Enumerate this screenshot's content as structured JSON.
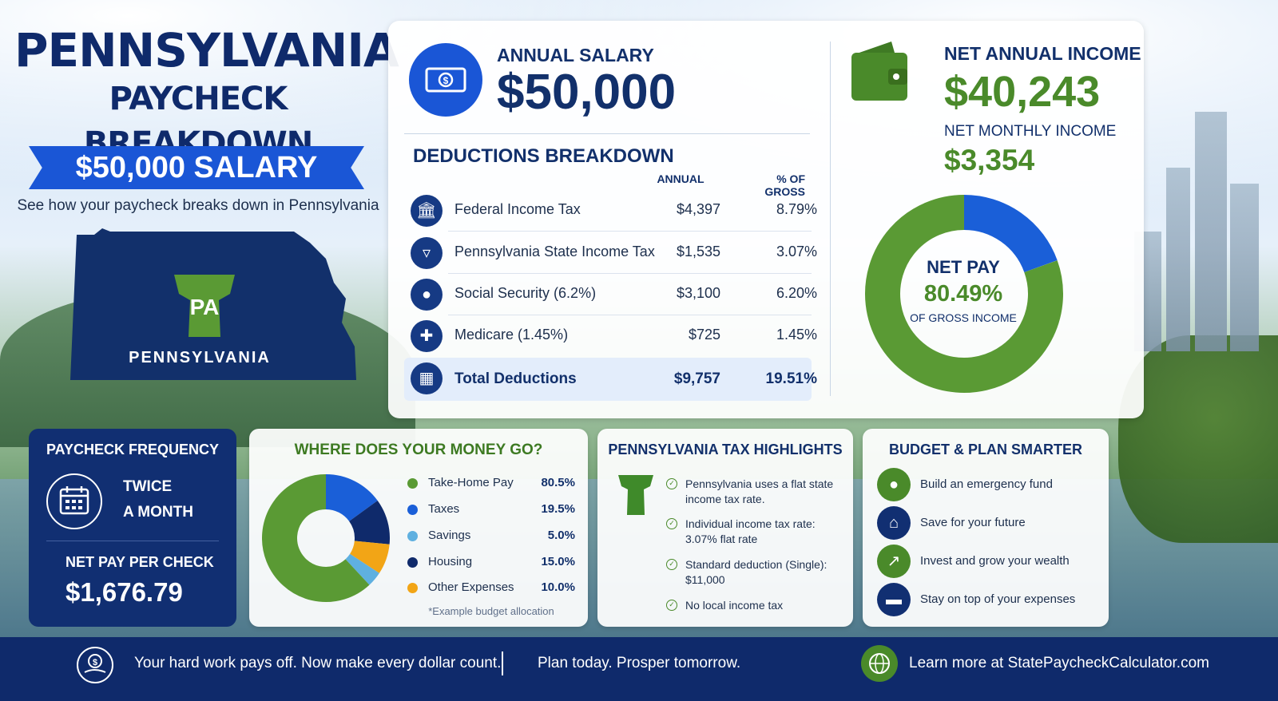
{
  "header": {
    "title_line1": "PENNSYLVANIA",
    "title_line2": "PAYCHECK BREAKDOWN",
    "ribbon": "$50,000 SALARY",
    "subtitle": "See how your paycheck breaks down in Pennsylvania",
    "map_badge": "PA",
    "map_label": "PENNSYLVANIA"
  },
  "salary": {
    "label": "ANNUAL SALARY",
    "value": "$50,000"
  },
  "deductions": {
    "title": "DEDUCTIONS BREAKDOWN",
    "col_annual": "ANNUAL",
    "col_pct": "% OF GROSS",
    "rows": [
      {
        "name": "Federal Income Tax",
        "annual": "$4,397",
        "pct": "8.79%",
        "icon": "bank-icon"
      },
      {
        "name": "Pennsylvania State Income Tax",
        "annual": "$1,535",
        "pct": "3.07%",
        "icon": "keystone-icon"
      },
      {
        "name": "Social Security (6.2%)",
        "annual": "$3,100",
        "pct": "6.20%",
        "icon": "people-icon"
      },
      {
        "name": "Medicare (1.45%)",
        "annual": "$725",
        "pct": "1.45%",
        "icon": "medical-cross-icon"
      }
    ],
    "total": {
      "name": "Total Deductions",
      "annual": "$9,757",
      "pct": "19.51%",
      "icon": "calculator-icon"
    }
  },
  "net": {
    "annual_label": "NET ANNUAL INCOME",
    "annual_value": "$40,243",
    "monthly_label": "NET MONTHLY INCOME",
    "monthly_value": "$3,354",
    "donut_label": "NET PAY",
    "donut_value": "80.49%",
    "donut_sub": "OF GROSS INCOME",
    "net_fraction": 0.8049,
    "colors": {
      "net": "#5a9a34",
      "deductions": "#1a5fd8"
    }
  },
  "frequency": {
    "title": "PAYCHECK FREQUENCY",
    "value_line1": "TWICE",
    "value_line2": "A MONTH",
    "net_label": "NET PAY PER CHECK",
    "net_value": "$1,676.79"
  },
  "money": {
    "title": "WHERE DOES YOUR MONEY GO?",
    "note": "*Example budget allocation",
    "items": [
      {
        "name": "Take-Home Pay",
        "value": "80.5%",
        "color": "#5a9a34"
      },
      {
        "name": "Taxes",
        "value": "19.5%",
        "color": "#1a5fd8"
      },
      {
        "name": "Savings",
        "value": "5.0%",
        "color": "#5fb0e0"
      },
      {
        "name": "Housing",
        "value": "15.0%",
        "color": "#0f2a6b"
      },
      {
        "name": "Other Expenses",
        "value": "10.0%",
        "color": "#f2a516"
      }
    ]
  },
  "chart_data": {
    "type": "pie",
    "categories": [
      "Take-Home Pay",
      "Taxes",
      "Savings",
      "Housing",
      "Other Expenses"
    ],
    "values": [
      80.5,
      19.5,
      5.0,
      15.0,
      10.0
    ],
    "title": "WHERE DOES YOUR MONEY GO?",
    "legend": "right"
  },
  "tax": {
    "title": "PENNSYLVANIA TAX HIGHLIGHTS",
    "items": [
      "Pennsylvania uses a flat state income tax rate.",
      "Individual income tax rate: 3.07% flat rate",
      "Standard deduction (Single): $11,000",
      "No local income tax"
    ]
  },
  "budget": {
    "title": "BUDGET & PLAN SMARTER",
    "items": [
      {
        "text": "Build an emergency fund",
        "icon": "piggy-bank-icon",
        "color": "#4a8a2a"
      },
      {
        "text": "Save for your future",
        "icon": "house-icon",
        "color": "#112f72"
      },
      {
        "text": "Invest and grow your wealth",
        "icon": "growth-chart-icon",
        "color": "#4a8a2a"
      },
      {
        "text": "Stay on top of your expenses",
        "icon": "credit-card-icon",
        "color": "#112f72"
      }
    ]
  },
  "footer": {
    "text1": "Your hard work pays off. Now make every dollar count.",
    "text2": "Plan today. Prosper tomorrow.",
    "text3": "Learn more at StatePaycheckCalculator.com"
  }
}
